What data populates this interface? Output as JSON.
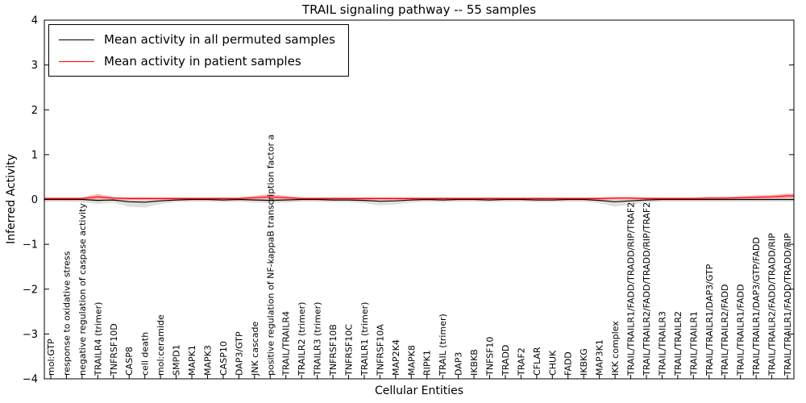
{
  "chart_data": {
    "type": "line",
    "title": "TRAIL signaling pathway -- 55 samples",
    "xlabel": "Cellular Entities",
    "ylabel": "Inferred Activity",
    "ylim": [
      -4,
      4
    ],
    "yticks": [
      -4,
      -3,
      -2,
      -1,
      0,
      1,
      2,
      3,
      4
    ],
    "grid": false,
    "legend_position": "upper left",
    "categories": [
      "mol:GTP",
      "response to oxidative stress",
      "negative regulation of caspase activity",
      "TRAILR4 (trimer)",
      "TNFRSF10D",
      "CASP8",
      "cell death",
      "mol:ceramide",
      "SMPD1",
      "MAPK1",
      "MAPK3",
      "CASP10",
      "DAP3/GTP",
      "JNK cascade",
      "positive regulation of NF-kappaB transcription factor a",
      "TRAIL/TRAILR4",
      "TRAILR2 (trimer)",
      "TRAILR3 (trimer)",
      "TNFRSF10B",
      "TNFRSF10C",
      "TRAILR1 (trimer)",
      "TNFRSF10A",
      "MAP2K4",
      "MAPK8",
      "RIPK1",
      "TRAIL (trimer)",
      "DAP3",
      "IKBKB",
      "TNFSF10",
      "TRADD",
      "TRAF2",
      "CFLAR",
      "CHUK",
      "FADD",
      "IKBKG",
      "MAP3K1",
      "IKK complex",
      "TRAIL/TRAILR1/FADD/TRADD/RIP/TRAF2",
      "TRAIL/TRAILR2/FADD/TRADD/RIP/TRAF2",
      "TRAIL/TRAILR3",
      "TRAIL/TRAILR2",
      "TRAIL/TRAILR1",
      "TRAIL/TRAILR1/DAP3/GTP",
      "TRAIL/TRAILR2/FADD",
      "TRAIL/TRAILR1/FADD",
      "TRAIL/TRAILR1/DAP3/GTP/FADD",
      "TRAIL/TRAILR2/FADD/TRADD/RIP",
      "TRAIL/TRAILR1/FADD/TRADD/RIP"
    ],
    "series": [
      {
        "name": "Mean activity in all permuted samples",
        "color": "#000000",
        "band_color": "#d6d6d6",
        "values": [
          0.0,
          0.0,
          0.0,
          -0.02,
          -0.01,
          -0.05,
          -0.06,
          -0.03,
          -0.01,
          0.0,
          0.0,
          -0.01,
          0.0,
          -0.01,
          -0.02,
          -0.01,
          0.0,
          0.0,
          -0.01,
          -0.01,
          -0.02,
          -0.04,
          -0.03,
          -0.01,
          0.0,
          -0.01,
          0.0,
          0.0,
          -0.01,
          0.0,
          0.0,
          -0.01,
          -0.01,
          0.0,
          0.0,
          -0.02,
          -0.05,
          -0.03,
          -0.01,
          0.0,
          0.0,
          0.0,
          0.0,
          0.0,
          0.0,
          0.0,
          0.0,
          0.0
        ],
        "band_low": [
          -0.05,
          -0.05,
          -0.06,
          -0.1,
          -0.07,
          -0.16,
          -0.18,
          -0.1,
          -0.06,
          -0.05,
          -0.05,
          -0.06,
          -0.05,
          -0.07,
          -0.08,
          -0.07,
          -0.05,
          -0.05,
          -0.06,
          -0.06,
          -0.08,
          -0.13,
          -0.11,
          -0.07,
          -0.05,
          -0.06,
          -0.05,
          -0.05,
          -0.06,
          -0.05,
          -0.05,
          -0.06,
          -0.06,
          -0.05,
          -0.05,
          -0.08,
          -0.16,
          -0.11,
          -0.07,
          -0.05,
          -0.05,
          -0.05,
          -0.05,
          -0.05,
          -0.05,
          -0.05,
          -0.05,
          -0.05
        ],
        "band_high": [
          0.04,
          0.04,
          0.04,
          0.05,
          0.04,
          0.05,
          0.05,
          0.04,
          0.04,
          0.04,
          0.04,
          0.04,
          0.04,
          0.05,
          0.05,
          0.05,
          0.04,
          0.04,
          0.04,
          0.04,
          0.05,
          0.05,
          0.05,
          0.04,
          0.04,
          0.04,
          0.04,
          0.04,
          0.04,
          0.04,
          0.04,
          0.04,
          0.04,
          0.04,
          0.04,
          0.04,
          0.05,
          0.05,
          0.04,
          0.04,
          0.04,
          0.04,
          0.04,
          0.04,
          0.04,
          0.04,
          0.04,
          0.04
        ]
      },
      {
        "name": "Mean activity in patient samples",
        "color": "#ff0000",
        "band_color": "#ff9d9d",
        "values": [
          0.02,
          0.02,
          0.02,
          0.06,
          0.03,
          0.02,
          0.02,
          0.02,
          0.02,
          0.02,
          0.02,
          0.02,
          0.02,
          0.04,
          0.06,
          0.04,
          0.02,
          0.02,
          0.02,
          0.02,
          0.02,
          0.02,
          0.02,
          0.02,
          0.02,
          0.02,
          0.02,
          0.02,
          0.02,
          0.02,
          0.02,
          0.02,
          0.02,
          0.02,
          0.02,
          0.02,
          0.03,
          0.03,
          0.02,
          0.02,
          0.02,
          0.02,
          0.03,
          0.03,
          0.04,
          0.05,
          0.06,
          0.08
        ],
        "band_low": [
          -0.01,
          -0.01,
          -0.01,
          0.0,
          0.0,
          -0.01,
          -0.01,
          -0.01,
          -0.01,
          -0.01,
          -0.01,
          -0.01,
          -0.01,
          0.0,
          0.0,
          0.0,
          -0.01,
          -0.01,
          -0.01,
          -0.01,
          -0.01,
          -0.01,
          -0.01,
          -0.01,
          -0.01,
          -0.01,
          -0.01,
          -0.01,
          -0.01,
          -0.01,
          -0.01,
          -0.01,
          -0.01,
          -0.01,
          -0.01,
          -0.01,
          0.0,
          0.0,
          -0.01,
          -0.01,
          -0.01,
          -0.01,
          0.0,
          0.0,
          0.01,
          0.01,
          0.02,
          0.03
        ],
        "band_high": [
          0.05,
          0.05,
          0.05,
          0.12,
          0.06,
          0.05,
          0.05,
          0.05,
          0.05,
          0.05,
          0.05,
          0.05,
          0.05,
          0.08,
          0.12,
          0.08,
          0.05,
          0.05,
          0.05,
          0.05,
          0.05,
          0.05,
          0.05,
          0.05,
          0.05,
          0.05,
          0.05,
          0.05,
          0.05,
          0.05,
          0.05,
          0.05,
          0.05,
          0.05,
          0.05,
          0.05,
          0.06,
          0.06,
          0.05,
          0.05,
          0.05,
          0.05,
          0.06,
          0.06,
          0.07,
          0.09,
          0.1,
          0.13
        ]
      }
    ]
  }
}
